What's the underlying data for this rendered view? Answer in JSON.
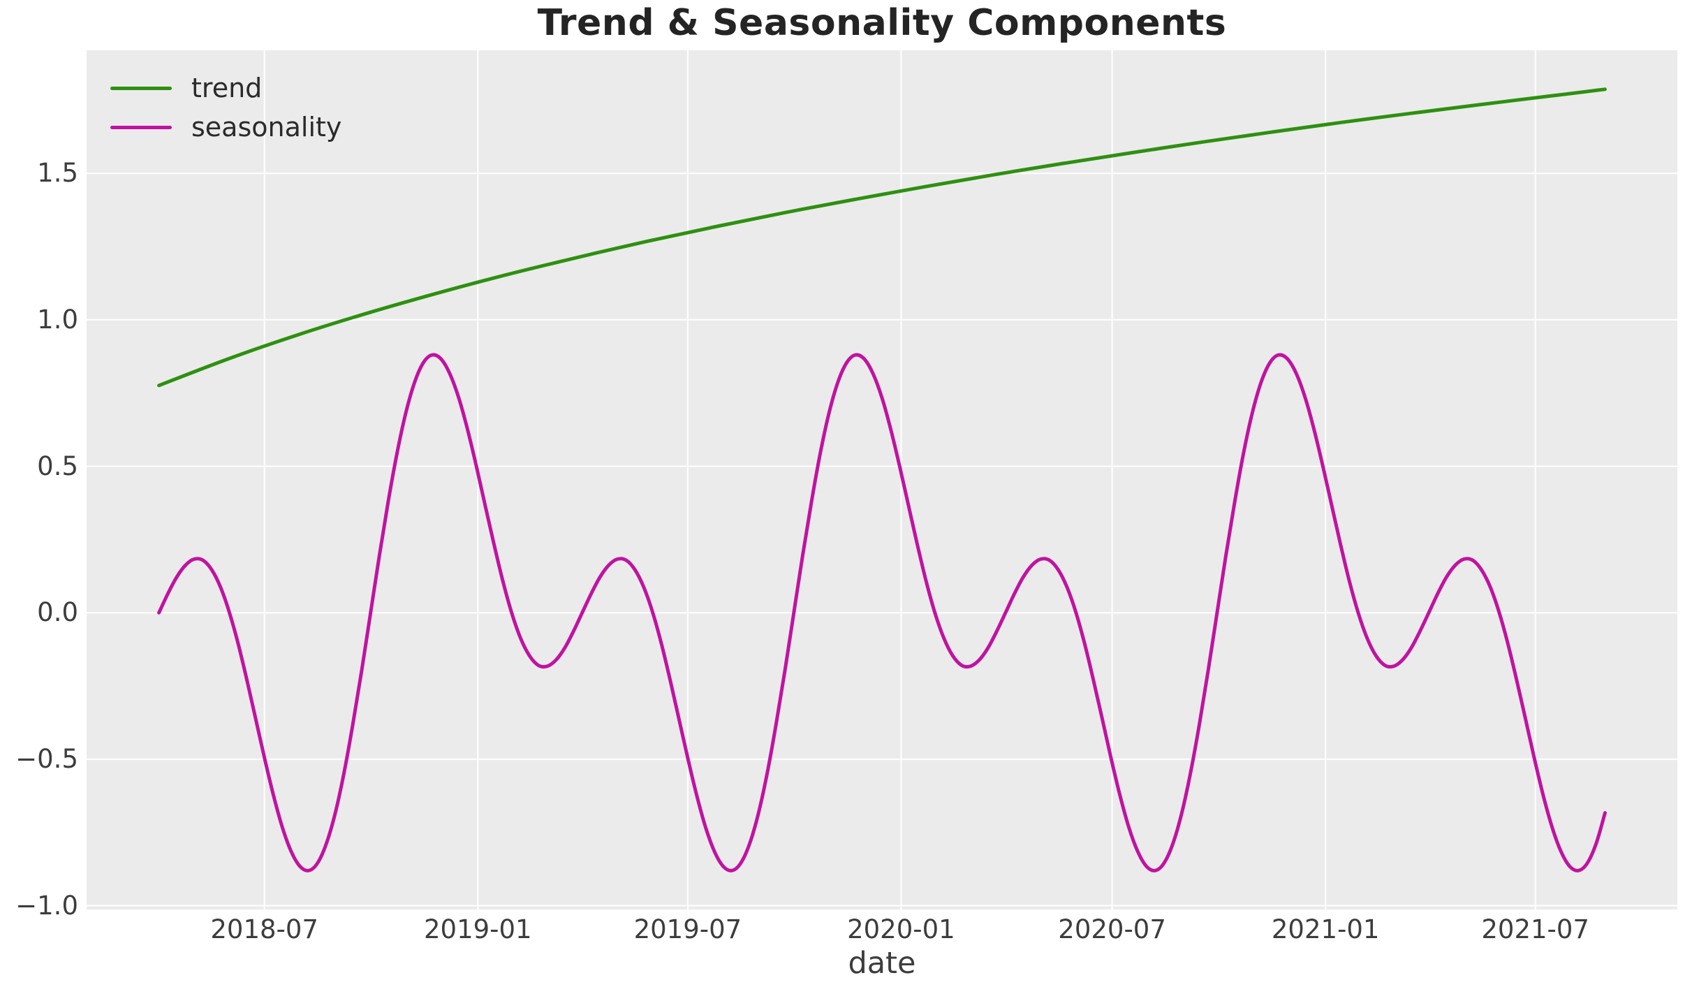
{
  "chart_data": {
    "type": "line",
    "title": "Trend & Seasonality Components",
    "xlabel": "date",
    "ylabel": "",
    "grid": true,
    "legend_position": "upper-left",
    "plot_bg_color": "#ebebeb",
    "grid_color": "#ffffff",
    "x_origin_date": "2018-04-01",
    "xlim_days": [
      -62.4,
      1309.4
    ],
    "ylim": [
      -1.013,
      1.92
    ],
    "x_ticks": [
      {
        "label": "2018-07",
        "t": 91
      },
      {
        "label": "2019-01",
        "t": 275
      },
      {
        "label": "2019-07",
        "t": 456
      },
      {
        "label": "2020-01",
        "t": 640
      },
      {
        "label": "2020-07",
        "t": 822
      },
      {
        "label": "2021-01",
        "t": 1006
      },
      {
        "label": "2021-07",
        "t": 1187
      }
    ],
    "y_ticks": [
      {
        "label": "1.5",
        "v": 1.5
      },
      {
        "label": "1.0",
        "v": 1.0
      },
      {
        "label": "0.5",
        "v": 0.5
      },
      {
        "label": "0.0",
        "v": 0.0
      },
      {
        "label": "−0.5",
        "v": -0.5
      },
      {
        "label": "−1.0",
        "v": -1.0
      }
    ],
    "series": [
      {
        "name": "trend",
        "color": "#2e9010",
        "line_width": 5,
        "t": [
          0,
          60,
          120,
          180,
          240,
          300,
          360,
          420,
          480,
          540,
          600,
          660,
          720,
          780,
          840,
          900,
          960,
          1020,
          1080,
          1140,
          1200,
          1247
        ],
        "values": [
          0.776,
          0.867,
          0.949,
          1.023,
          1.091,
          1.154,
          1.212,
          1.267,
          1.318,
          1.366,
          1.411,
          1.454,
          1.495,
          1.534,
          1.571,
          1.607,
          1.641,
          1.674,
          1.705,
          1.735,
          1.764,
          1.787
        ]
      },
      {
        "name": "seasonality",
        "color": "#c013a0",
        "line_width": 5,
        "t_start": 0,
        "t_step": 7.60417,
        "values": [
          0,
          0.064,
          0.121,
          0.162,
          0.183,
          0.179,
          0.146,
          0.086,
          0,
          -0.108,
          -0.233,
          -0.366,
          -0.5,
          -0.625,
          -0.733,
          -0.815,
          -0.866,
          -0.88,
          -0.854,
          -0.787,
          -0.683,
          -0.545,
          -0.379,
          -0.195,
          0,
          0.195,
          0.379,
          0.545,
          0.683,
          0.787,
          0.854,
          0.88,
          0.866,
          0.815,
          0.733,
          0.625,
          0.5,
          0.366,
          0.233,
          0.108,
          0,
          -0.086,
          -0.146,
          -0.179,
          -0.183,
          -0.162,
          -0.121,
          -0.064,
          0,
          0.064,
          0.121,
          0.162,
          0.183,
          0.179,
          0.146,
          0.086,
          0,
          -0.108,
          -0.233,
          -0.366,
          -0.5,
          -0.625,
          -0.733,
          -0.815,
          -0.866,
          -0.88,
          -0.854,
          -0.787,
          -0.683,
          -0.545,
          -0.379,
          -0.195,
          0,
          0.195,
          0.379,
          0.545,
          0.683,
          0.787,
          0.854,
          0.88,
          0.866,
          0.815,
          0.733,
          0.625,
          0.5,
          0.366,
          0.233,
          0.108,
          0,
          -0.086,
          -0.146,
          -0.179,
          -0.183,
          -0.162,
          -0.121,
          -0.064,
          0,
          0.064,
          0.121,
          0.162,
          0.183,
          0.179,
          0.146,
          0.086,
          0,
          -0.108,
          -0.233,
          -0.366,
          -0.5,
          -0.625,
          -0.733,
          -0.815,
          -0.866,
          -0.88,
          -0.854,
          -0.787,
          -0.683,
          -0.545,
          -0.379,
          -0.195,
          0,
          0.195,
          0.379,
          0.545,
          0.683,
          0.787,
          0.854,
          0.88,
          0.866,
          0.815,
          0.733,
          0.625,
          0.5,
          0.366,
          0.233,
          0.108,
          0,
          -0.086,
          -0.146,
          -0.179,
          -0.183,
          -0.162,
          -0.121,
          -0.064,
          0,
          0.064,
          0.121,
          0.162,
          0.183,
          0.179,
          0.146,
          0.086,
          0,
          -0.108,
          -0.233,
          -0.366,
          -0.5,
          -0.625,
          -0.733,
          -0.815,
          -0.866,
          -0.88,
          -0.854,
          -0.787,
          -0.683
        ]
      }
    ]
  }
}
